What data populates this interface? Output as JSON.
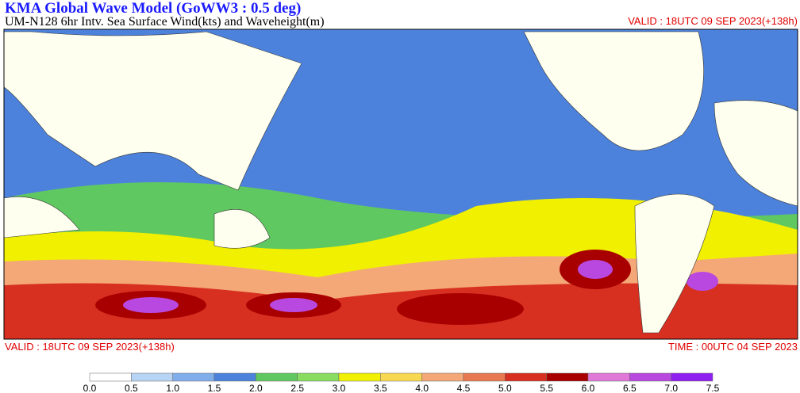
{
  "header": {
    "title": "KMA  Global Wave Model (GoWW3 : 0.5 deg)",
    "subtitle": "UM-N128  6hr Intv. Sea Surface Wind(kts) and Waveheight(m)",
    "valid_top": "VALID : 18UTC 09 SEP 2023(+138h)"
  },
  "footer": {
    "valid": "VALID : 18UTC 09 SEP 2023(+138h)",
    "time": "TIME : 00UTC 04 SEP 2023"
  },
  "colorbar": {
    "levels": [
      {
        "value": 0,
        "label": "0.0"
      },
      0.5,
      {
        "value": 1,
        "label": "1.0"
      },
      1.5,
      {
        "value": 2,
        "label": "2.0"
      },
      2.5,
      {
        "value": 3,
        "label": "3.0"
      },
      3.5,
      {
        "value": 4,
        "label": "4.0"
      },
      4.5,
      {
        "value": 5,
        "label": "5.0"
      },
      5.5,
      {
        "value": 6,
        "label": "6.0"
      },
      6.5,
      {
        "value": 7,
        "label": "7.0"
      },
      7.5
    ],
    "colors": [
      "#ffffff",
      "#b8d4f4",
      "#80aeea",
      "#4c82dc",
      "#60c860",
      "#88dc60",
      "#f0f000",
      "#f8d850",
      "#f4a878",
      "#e87850",
      "#d83020",
      "#a80000",
      "#e078d8",
      "#b848e0",
      "#9020f0"
    ]
  }
}
